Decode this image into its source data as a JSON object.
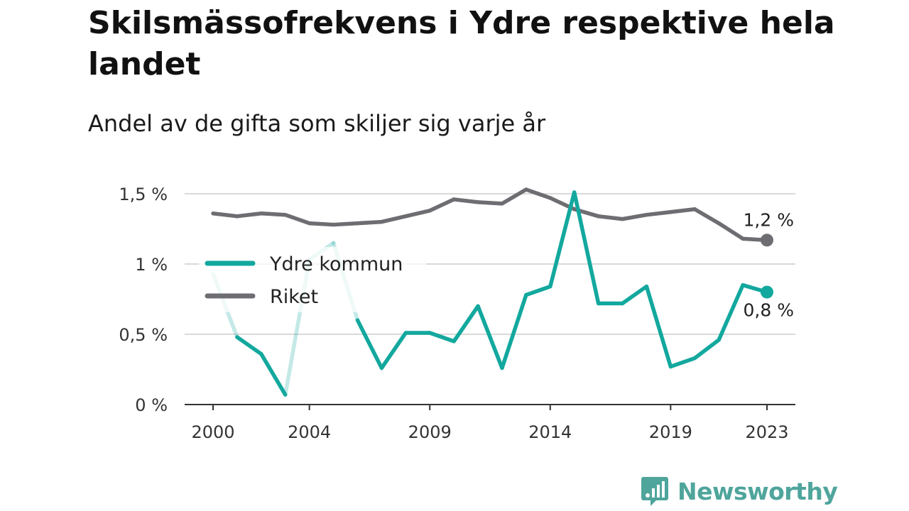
{
  "title": "Skilsmässofrekvens i Ydre respektive hela landet",
  "subtitle": "Andel av de gifta som skiljer sig varje år",
  "brand": {
    "name": "Newsworthy",
    "icon": "newsworthy-logo-icon",
    "color": "#4fa59c"
  },
  "chart_data": {
    "type": "line",
    "x": [
      2000,
      2001,
      2002,
      2003,
      2004,
      2005,
      2006,
      2007,
      2008,
      2009,
      2010,
      2011,
      2012,
      2013,
      2014,
      2015,
      2016,
      2017,
      2018,
      2019,
      2020,
      2021,
      2022,
      2023
    ],
    "x_ticks": [
      "2000",
      "2004",
      "2009",
      "2014",
      "2019",
      "2023"
    ],
    "x_tick_values": [
      2000,
      2004,
      2009,
      2014,
      2019,
      2023
    ],
    "y_ticks": [
      "0 %",
      "0,5 %",
      "1 %",
      "1,5 %"
    ],
    "y_tick_values": [
      0,
      0.5,
      1,
      1.5
    ],
    "ylim": [
      0,
      1.5
    ],
    "xlim": [
      2000,
      2023
    ],
    "grid": true,
    "legend_position": "middle-left",
    "series": [
      {
        "name": "Ydre kommun",
        "color": "#13a89e",
        "values": [
          0.93,
          0.48,
          0.36,
          0.07,
          1.03,
          1.15,
          0.6,
          0.26,
          0.51,
          0.51,
          0.45,
          0.7,
          0.26,
          0.78,
          0.84,
          1.51,
          0.72,
          0.72,
          0.84,
          0.27,
          0.33,
          0.46,
          0.85,
          0.8
        ],
        "faded_points": [
          2000,
          2004,
          2005
        ],
        "end_label": "0,8 %"
      },
      {
        "name": "Riket",
        "color": "#6e6d72",
        "values": [
          1.36,
          1.34,
          1.36,
          1.35,
          1.29,
          1.28,
          1.29,
          1.3,
          1.34,
          1.38,
          1.46,
          1.44,
          1.43,
          1.53,
          1.47,
          1.39,
          1.34,
          1.32,
          1.35,
          1.37,
          1.39,
          1.29,
          1.18,
          1.17
        ],
        "end_label": "1,2 %"
      }
    ]
  }
}
